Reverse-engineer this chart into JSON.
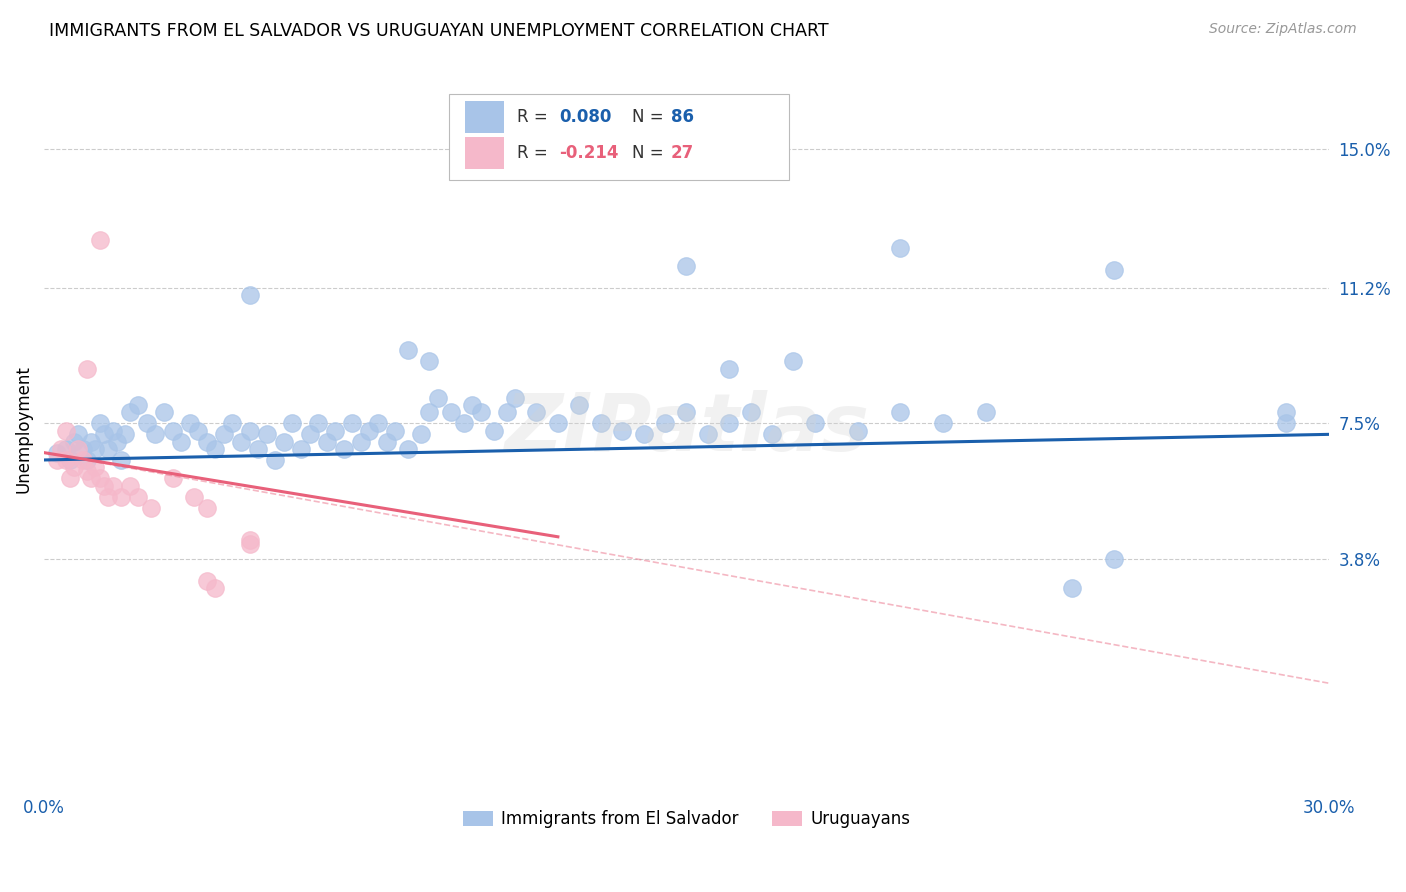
{
  "title": "IMMIGRANTS FROM EL SALVADOR VS URUGUAYAN UNEMPLOYMENT CORRELATION CHART",
  "source": "Source: ZipAtlas.com",
  "ylabel": "Unemployment",
  "yticks": [
    0.038,
    0.075,
    0.112,
    0.15
  ],
  "ytick_labels": [
    "3.8%",
    "7.5%",
    "11.2%",
    "15.0%"
  ],
  "xlim": [
    0.0,
    0.3
  ],
  "ylim": [
    -0.025,
    0.172
  ],
  "legend_label_blue": "Immigrants from El Salvador",
  "legend_label_pink": "Uruguayans",
  "blue_color": "#a8c4e8",
  "pink_color": "#f5b8ca",
  "blue_line_color": "#1a5fac",
  "pink_line_color": "#e8607a",
  "watermark": "ZIPatlas",
  "blue_scatter": [
    [
      0.003,
      0.067
    ],
    [
      0.005,
      0.068
    ],
    [
      0.006,
      0.065
    ],
    [
      0.007,
      0.07
    ],
    [
      0.008,
      0.072
    ],
    [
      0.009,
      0.068
    ],
    [
      0.01,
      0.065
    ],
    [
      0.011,
      0.07
    ],
    [
      0.012,
      0.068
    ],
    [
      0.013,
      0.075
    ],
    [
      0.014,
      0.072
    ],
    [
      0.015,
      0.068
    ],
    [
      0.016,
      0.073
    ],
    [
      0.017,
      0.07
    ],
    [
      0.018,
      0.065
    ],
    [
      0.019,
      0.072
    ],
    [
      0.02,
      0.078
    ],
    [
      0.022,
      0.08
    ],
    [
      0.024,
      0.075
    ],
    [
      0.026,
      0.072
    ],
    [
      0.028,
      0.078
    ],
    [
      0.03,
      0.073
    ],
    [
      0.032,
      0.07
    ],
    [
      0.034,
      0.075
    ],
    [
      0.036,
      0.073
    ],
    [
      0.038,
      0.07
    ],
    [
      0.04,
      0.068
    ],
    [
      0.042,
      0.072
    ],
    [
      0.044,
      0.075
    ],
    [
      0.046,
      0.07
    ],
    [
      0.048,
      0.073
    ],
    [
      0.05,
      0.068
    ],
    [
      0.052,
      0.072
    ],
    [
      0.054,
      0.065
    ],
    [
      0.056,
      0.07
    ],
    [
      0.058,
      0.075
    ],
    [
      0.06,
      0.068
    ],
    [
      0.062,
      0.072
    ],
    [
      0.064,
      0.075
    ],
    [
      0.066,
      0.07
    ],
    [
      0.068,
      0.073
    ],
    [
      0.07,
      0.068
    ],
    [
      0.072,
      0.075
    ],
    [
      0.074,
      0.07
    ],
    [
      0.076,
      0.073
    ],
    [
      0.078,
      0.075
    ],
    [
      0.08,
      0.07
    ],
    [
      0.082,
      0.073
    ],
    [
      0.085,
      0.068
    ],
    [
      0.088,
      0.072
    ],
    [
      0.09,
      0.078
    ],
    [
      0.092,
      0.082
    ],
    [
      0.095,
      0.078
    ],
    [
      0.098,
      0.075
    ],
    [
      0.1,
      0.08
    ],
    [
      0.102,
      0.078
    ],
    [
      0.105,
      0.073
    ],
    [
      0.108,
      0.078
    ],
    [
      0.11,
      0.082
    ],
    [
      0.115,
      0.078
    ],
    [
      0.12,
      0.075
    ],
    [
      0.125,
      0.08
    ],
    [
      0.13,
      0.075
    ],
    [
      0.135,
      0.073
    ],
    [
      0.14,
      0.072
    ],
    [
      0.145,
      0.075
    ],
    [
      0.15,
      0.078
    ],
    [
      0.155,
      0.072
    ],
    [
      0.16,
      0.075
    ],
    [
      0.165,
      0.078
    ],
    [
      0.17,
      0.072
    ],
    [
      0.18,
      0.075
    ],
    [
      0.19,
      0.073
    ],
    [
      0.2,
      0.078
    ],
    [
      0.21,
      0.075
    ],
    [
      0.22,
      0.078
    ],
    [
      0.048,
      0.11
    ],
    [
      0.15,
      0.118
    ],
    [
      0.2,
      0.123
    ],
    [
      0.25,
      0.117
    ],
    [
      0.24,
      0.03
    ],
    [
      0.25,
      0.038
    ],
    [
      0.29,
      0.075
    ],
    [
      0.29,
      0.078
    ],
    [
      0.16,
      0.09
    ],
    [
      0.175,
      0.092
    ],
    [
      0.085,
      0.095
    ],
    [
      0.09,
      0.092
    ]
  ],
  "pink_scatter": [
    [
      0.003,
      0.065
    ],
    [
      0.004,
      0.068
    ],
    [
      0.005,
      0.065
    ],
    [
      0.006,
      0.06
    ],
    [
      0.007,
      0.063
    ],
    [
      0.008,
      0.068
    ],
    [
      0.009,
      0.065
    ],
    [
      0.01,
      0.062
    ],
    [
      0.011,
      0.06
    ],
    [
      0.012,
      0.063
    ],
    [
      0.013,
      0.06
    ],
    [
      0.014,
      0.058
    ],
    [
      0.015,
      0.055
    ],
    [
      0.016,
      0.058
    ],
    [
      0.018,
      0.055
    ],
    [
      0.02,
      0.058
    ],
    [
      0.022,
      0.055
    ],
    [
      0.025,
      0.052
    ],
    [
      0.01,
      0.09
    ],
    [
      0.013,
      0.125
    ],
    [
      0.005,
      0.073
    ],
    [
      0.03,
      0.06
    ],
    [
      0.035,
      0.055
    ],
    [
      0.038,
      0.052
    ],
    [
      0.048,
      0.042
    ],
    [
      0.048,
      0.043
    ],
    [
      0.038,
      0.032
    ],
    [
      0.04,
      0.03
    ]
  ],
  "blue_line": [
    0.0,
    0.065,
    0.3,
    0.072
  ],
  "pink_line_solid": [
    0.0,
    0.067,
    0.12,
    0.044
  ],
  "pink_line_dashed": [
    0.0,
    0.067,
    0.3,
    0.004
  ]
}
